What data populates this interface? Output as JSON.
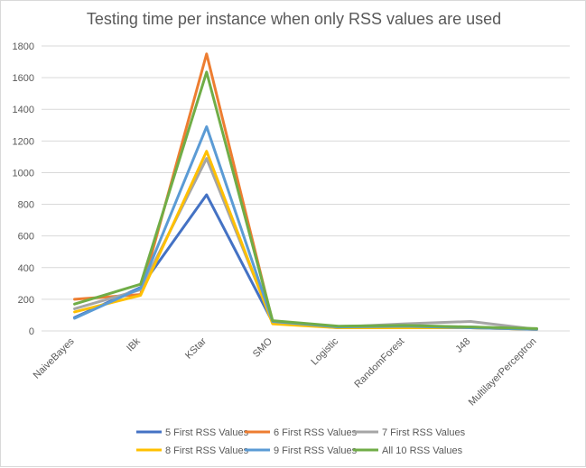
{
  "chart_data": {
    "type": "line",
    "title": "Testing time per instance when only RSS values are used",
    "xlabel": "",
    "ylabel": "",
    "categories": [
      "NaiveBayes",
      "IBk",
      "KStar",
      "SMO",
      "Logistic",
      "RandomForest",
      "J48",
      "MultilayerPerceptron"
    ],
    "ylim": [
      0,
      1800
    ],
    "yticks": [
      0,
      200,
      400,
      600,
      800,
      1000,
      1200,
      1400,
      1600,
      1800
    ],
    "grid": true,
    "legend_position": "bottom",
    "series": [
      {
        "name": "5 First RSS Values",
        "color": "#4472C4",
        "values": [
          85,
          275,
          860,
          55,
          20,
          30,
          25,
          10
        ]
      },
      {
        "name": "6 First RSS Values",
        "color": "#ED7D31",
        "values": [
          200,
          230,
          1750,
          55,
          25,
          30,
          20,
          10
        ]
      },
      {
        "name": "7 First RSS Values",
        "color": "#A5A5A5",
        "values": [
          140,
          260,
          1090,
          55,
          25,
          45,
          60,
          10
        ]
      },
      {
        "name": "8 First RSS Values",
        "color": "#FFC000",
        "values": [
          120,
          225,
          1135,
          45,
          20,
          20,
          20,
          10
        ]
      },
      {
        "name": "9 First RSS Values",
        "color": "#5B9BD5",
        "values": [
          80,
          270,
          1290,
          60,
          25,
          30,
          20,
          10
        ]
      },
      {
        "name": "All 10 RSS Values",
        "color": "#70AD47",
        "values": [
          170,
          295,
          1635,
          65,
          30,
          35,
          25,
          15
        ]
      }
    ]
  }
}
